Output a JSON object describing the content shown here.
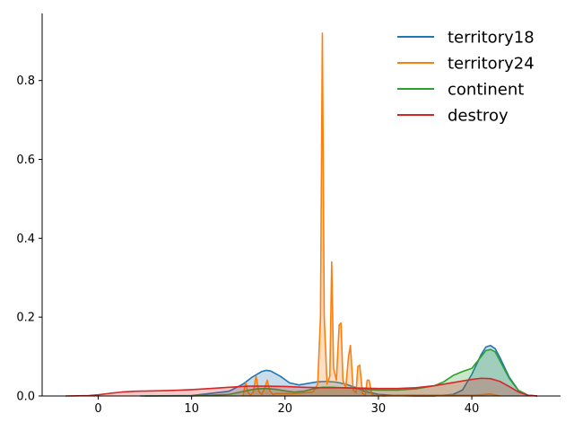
{
  "chart_data": {
    "type": "area",
    "title": "",
    "xlabel": "",
    "ylabel": "",
    "xlim": [
      -6,
      49.5
    ],
    "ylim": [
      0,
      0.97
    ],
    "x_ticks": [
      0,
      10,
      20,
      30,
      40
    ],
    "y_ticks": [
      0.0,
      0.2,
      0.4,
      0.6,
      0.8
    ],
    "x_tick_labels": [
      "0",
      "10",
      "20",
      "30",
      "40"
    ],
    "y_tick_labels": [
      "0.0",
      "0.2",
      "0.4",
      "0.6",
      "0.8"
    ],
    "grid": false,
    "legend_position": "top-right",
    "series": [
      {
        "name": "territory18",
        "color": "#1f77b4",
        "x": [
          4.5,
          10,
          14,
          15.5,
          16.5,
          17.5,
          18,
          18.5,
          19.5,
          20.5,
          21.5,
          22.5,
          23.5,
          24.5,
          25.5,
          26.5,
          27.5,
          28.5,
          30,
          32,
          34,
          36,
          38,
          39,
          40,
          41,
          41.5,
          42,
          42.5,
          43,
          44,
          45,
          46,
          47
        ],
        "y": [
          0.0,
          0.001,
          0.012,
          0.03,
          0.048,
          0.062,
          0.065,
          0.063,
          0.05,
          0.033,
          0.028,
          0.032,
          0.036,
          0.037,
          0.035,
          0.03,
          0.022,
          0.012,
          0.004,
          0.001,
          0.0,
          0.0,
          0.004,
          0.015,
          0.055,
          0.105,
          0.124,
          0.128,
          0.12,
          0.098,
          0.048,
          0.014,
          0.002,
          0.0
        ]
      },
      {
        "name": "territory24",
        "color": "#ff7f0e",
        "x": [
          15.5,
          15.8,
          16,
          16.3,
          16.6,
          16.9,
          17.2,
          17.5,
          17.8,
          18.1,
          18.4,
          18.7,
          19,
          20,
          21,
          22,
          23,
          23.5,
          23.8,
          24,
          24.2,
          24.5,
          24.8,
          25,
          25.2,
          25.5,
          25.8,
          26,
          26.2,
          26.5,
          26.8,
          27,
          27.3,
          27.6,
          27.8,
          28,
          28.3,
          28.6,
          28.8,
          29,
          29.3,
          29.6,
          30,
          30.5,
          31,
          32,
          34,
          36,
          38,
          40,
          41,
          42,
          43
        ],
        "y": [
          0.0,
          0.034,
          0.012,
          0.002,
          0.01,
          0.05,
          0.012,
          0.004,
          0.018,
          0.04,
          0.012,
          0.004,
          0.006,
          0.006,
          0.006,
          0.008,
          0.01,
          0.03,
          0.2,
          0.92,
          0.2,
          0.03,
          0.05,
          0.34,
          0.07,
          0.04,
          0.18,
          0.185,
          0.04,
          0.02,
          0.1,
          0.128,
          0.015,
          0.008,
          0.075,
          0.078,
          0.006,
          0.003,
          0.04,
          0.04,
          0.004,
          0.001,
          0.002,
          0.0,
          0.001,
          0.002,
          0.002,
          0.002,
          0.002,
          0.002,
          0.003,
          0.005,
          0.0
        ]
      },
      {
        "name": "continent",
        "color": "#2ca02c",
        "x": [
          5,
          10,
          14,
          16,
          17,
          18,
          19,
          20,
          21,
          22,
          23,
          24,
          25,
          26,
          27,
          28,
          29,
          30,
          32,
          34,
          36,
          37,
          38,
          39,
          40,
          41,
          41.5,
          42,
          42.5,
          43,
          44,
          45,
          46,
          47
        ],
        "y": [
          0.0,
          0.0,
          0.004,
          0.014,
          0.018,
          0.019,
          0.017,
          0.013,
          0.01,
          0.012,
          0.018,
          0.022,
          0.022,
          0.021,
          0.02,
          0.018,
          0.016,
          0.015,
          0.015,
          0.018,
          0.026,
          0.036,
          0.052,
          0.062,
          0.07,
          0.1,
          0.115,
          0.118,
          0.112,
          0.09,
          0.045,
          0.014,
          0.002,
          0.0
        ]
      },
      {
        "name": "destroy",
        "color": "#d62728",
        "x": [
          -3.5,
          -1,
          0,
          1,
          2.5,
          4,
          6,
          8,
          10,
          12,
          14,
          16,
          18,
          20,
          22,
          24,
          26,
          28,
          30,
          32,
          34,
          36,
          38,
          40,
          41,
          42,
          43,
          44,
          45,
          46,
          47
        ],
        "y": [
          0.0,
          0.001,
          0.003,
          0.006,
          0.01,
          0.012,
          0.013,
          0.014,
          0.016,
          0.019,
          0.022,
          0.025,
          0.025,
          0.024,
          0.022,
          0.021,
          0.021,
          0.02,
          0.019,
          0.019,
          0.021,
          0.026,
          0.034,
          0.042,
          0.045,
          0.044,
          0.037,
          0.024,
          0.01,
          0.002,
          0.0
        ]
      }
    ]
  }
}
